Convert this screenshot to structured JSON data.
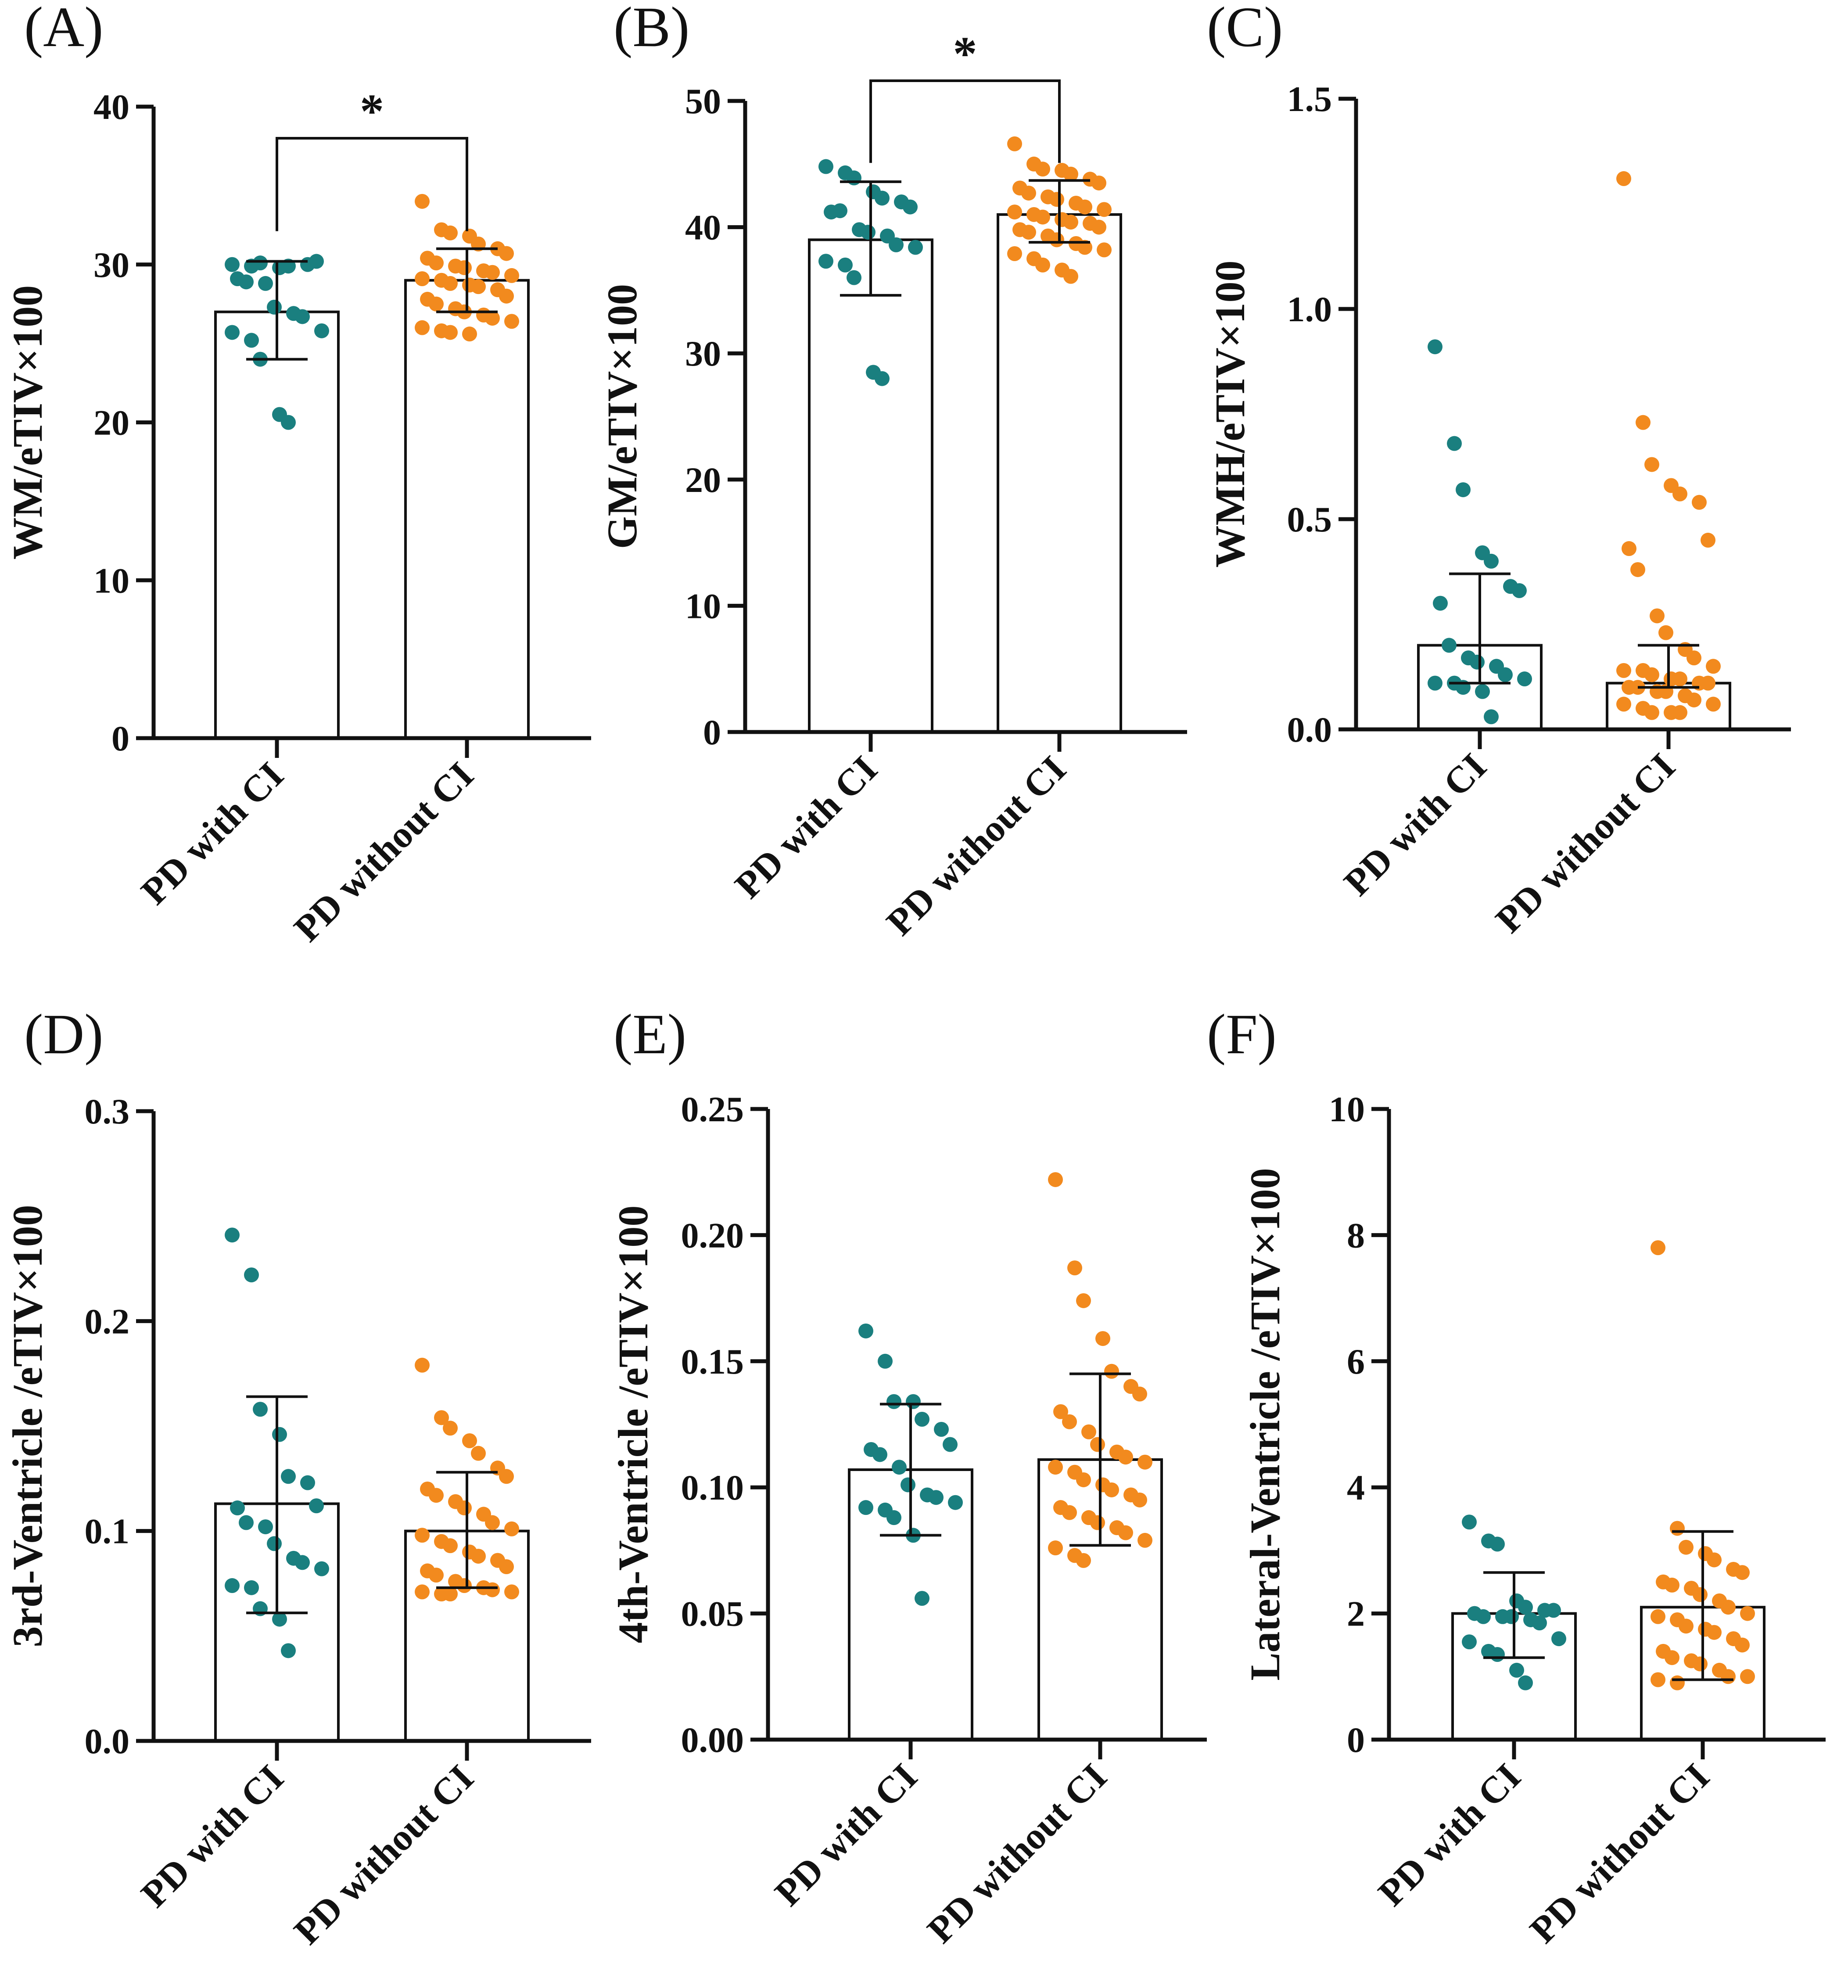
{
  "chart_data": [
    {
      "type": "bar",
      "panel_label": "(A)",
      "ylabel": "WM/eTIV×100",
      "ylim": [
        0,
        40
      ],
      "yticks": [
        0,
        10,
        20,
        30,
        40
      ],
      "ytick_labels": [
        "0",
        "10",
        "20",
        "30",
        "40"
      ],
      "categories": [
        "PD with CI",
        "PD without CI"
      ],
      "series": [
        {
          "name": "PD with CI",
          "color": "#1a7f7f",
          "mean": 27.0,
          "sd_low": 24.0,
          "sd_high": 30.2,
          "points": [
            30.0,
            29.9,
            30.1,
            29.8,
            29.9,
            30.0,
            30.2,
            29.1,
            28.9,
            28.8,
            27.3,
            26.9,
            26.7,
            25.8,
            25.7,
            25.2,
            24.0,
            20.5,
            20.0
          ]
        },
        {
          "name": "PD without CI",
          "color": "#f28a1e",
          "mean": 29.0,
          "sd_low": 27.0,
          "sd_high": 31.0,
          "points": [
            34.0,
            32.2,
            32.0,
            31.8,
            31.3,
            31.0,
            30.7,
            30.4,
            30.1,
            29.9,
            29.8,
            29.6,
            29.5,
            29.3,
            29.1,
            29.0,
            28.8,
            28.7,
            28.6,
            28.4,
            28.0,
            27.8,
            27.5,
            27.2,
            27.0,
            26.8,
            26.6,
            26.4,
            26.0,
            25.8,
            25.7,
            25.6
          ]
        }
      ],
      "significance": {
        "between": [
          0,
          1
        ],
        "label": "*",
        "y": 38.0
      }
    },
    {
      "type": "bar",
      "panel_label": "(B)",
      "ylabel": "GM/eTIV×100",
      "ylim": [
        0,
        50
      ],
      "yticks": [
        0,
        10,
        20,
        30,
        40,
        50
      ],
      "ytick_labels": [
        "0",
        "10",
        "20",
        "30",
        "40",
        "50"
      ],
      "categories": [
        "PD with CI",
        "PD without CI"
      ],
      "series": [
        {
          "name": "PD with CI",
          "color": "#1a7f7f",
          "mean": 39.0,
          "sd_low": 34.6,
          "sd_high": 43.6,
          "points": [
            44.8,
            44.3,
            43.9,
            42.8,
            42.3,
            42.0,
            41.6,
            41.2,
            41.3,
            39.8,
            39.6,
            39.3,
            38.6,
            38.4,
            37.3,
            37.0,
            36.0,
            28.5,
            28.0
          ]
        },
        {
          "name": "PD without CI",
          "color": "#f28a1e",
          "mean": 41.0,
          "sd_low": 38.8,
          "sd_high": 43.7,
          "points": [
            46.6,
            45.0,
            44.6,
            44.5,
            44.2,
            43.8,
            43.5,
            43.1,
            42.7,
            42.4,
            42.2,
            41.9,
            41.6,
            41.4,
            41.2,
            41.0,
            40.8,
            40.6,
            40.4,
            40.3,
            40.0,
            39.8,
            39.6,
            39.3,
            39.0,
            38.7,
            38.4,
            38.2,
            37.9,
            37.5,
            37.0,
            36.6,
            36.1
          ]
        }
      ],
      "significance": {
        "between": [
          0,
          1
        ],
        "label": "*",
        "y": 51.6
      }
    },
    {
      "type": "bar",
      "panel_label": "(C)",
      "ylabel": "WMH/eTIV×100",
      "ylim": [
        0,
        1.5
      ],
      "yticks": [
        0,
        0.5,
        1.0,
        1.5
      ],
      "ytick_labels": [
        "0.0",
        "0.5",
        "1.0",
        "1.5"
      ],
      "categories": [
        "PD with CI",
        "PD without CI"
      ],
      "series": [
        {
          "name": "PD with CI",
          "color": "#1a7f7f",
          "mean": 0.2,
          "sd_low": 0.11,
          "sd_high": 0.37,
          "points": [
            0.91,
            0.68,
            0.57,
            0.42,
            0.4,
            0.34,
            0.33,
            0.3,
            0.2,
            0.17,
            0.16,
            0.15,
            0.13,
            0.12,
            0.11,
            0.11,
            0.1,
            0.09,
            0.03
          ]
        },
        {
          "name": "PD without CI",
          "color": "#f28a1e",
          "mean": 0.11,
          "sd_low": 0.1,
          "sd_high": 0.2,
          "points": [
            1.31,
            0.73,
            0.63,
            0.58,
            0.56,
            0.54,
            0.45,
            0.43,
            0.38,
            0.27,
            0.23,
            0.19,
            0.17,
            0.15,
            0.14,
            0.14,
            0.13,
            0.12,
            0.12,
            0.11,
            0.11,
            0.1,
            0.1,
            0.09,
            0.09,
            0.08,
            0.07,
            0.06,
            0.06,
            0.05,
            0.04,
            0.04,
            0.04
          ]
        }
      ]
    },
    {
      "type": "bar",
      "panel_label": "(D)",
      "ylabel": "3rd-Ventricle /eTIV×100",
      "ylim": [
        0,
        0.3
      ],
      "yticks": [
        0,
        0.1,
        0.2,
        0.3
      ],
      "ytick_labels": [
        "0.0",
        "0.1",
        "0.2",
        "0.3"
      ],
      "categories": [
        "PD with CI",
        "PD without CI"
      ],
      "series": [
        {
          "name": "PD with CI",
          "color": "#1a7f7f",
          "mean": 0.113,
          "sd_low": 0.061,
          "sd_high": 0.164,
          "points": [
            0.241,
            0.222,
            0.158,
            0.146,
            0.126,
            0.123,
            0.112,
            0.111,
            0.104,
            0.102,
            0.094,
            0.087,
            0.085,
            0.082,
            0.074,
            0.073,
            0.063,
            0.058,
            0.043
          ]
        },
        {
          "name": "PD without CI",
          "color": "#f28a1e",
          "mean": 0.1,
          "sd_low": 0.073,
          "sd_high": 0.128,
          "points": [
            0.179,
            0.154,
            0.149,
            0.143,
            0.137,
            0.13,
            0.126,
            0.12,
            0.117,
            0.114,
            0.111,
            0.108,
            0.104,
            0.101,
            0.098,
            0.095,
            0.093,
            0.09,
            0.088,
            0.086,
            0.083,
            0.081,
            0.079,
            0.076,
            0.074,
            0.073,
            0.072,
            0.071,
            0.071,
            0.07,
            0.07
          ]
        }
      ]
    },
    {
      "type": "bar",
      "panel_label": "(E)",
      "ylabel": "4th-Ventricle /eTIV×100",
      "ylim": [
        0,
        0.25
      ],
      "yticks": [
        0,
        0.05,
        0.1,
        0.15,
        0.2,
        0.25
      ],
      "ytick_labels": [
        "0.00",
        "0.05",
        "0.10",
        "0.15",
        "0.20",
        "0.25"
      ],
      "categories": [
        "PD with CI",
        "PD without CI"
      ],
      "series": [
        {
          "name": "PD with CI",
          "color": "#1a7f7f",
          "mean": 0.107,
          "sd_low": 0.081,
          "sd_high": 0.133,
          "points": [
            0.162,
            0.15,
            0.134,
            0.134,
            0.127,
            0.123,
            0.117,
            0.115,
            0.113,
            0.108,
            0.101,
            0.097,
            0.096,
            0.094,
            0.092,
            0.091,
            0.088,
            0.081,
            0.056
          ]
        },
        {
          "name": "PD without CI",
          "color": "#f28a1e",
          "mean": 0.111,
          "sd_low": 0.077,
          "sd_high": 0.145,
          "points": [
            0.222,
            0.187,
            0.174,
            0.159,
            0.146,
            0.14,
            0.137,
            0.13,
            0.126,
            0.122,
            0.117,
            0.114,
            0.112,
            0.11,
            0.108,
            0.106,
            0.103,
            0.101,
            0.099,
            0.097,
            0.095,
            0.092,
            0.09,
            0.088,
            0.086,
            0.084,
            0.082,
            0.079,
            0.076,
            0.073,
            0.071
          ]
        }
      ]
    },
    {
      "type": "bar",
      "panel_label": "(F)",
      "ylabel": "Lateral-Ventricle /eTIV×100",
      "ylim": [
        0,
        10
      ],
      "yticks": [
        0,
        2,
        4,
        6,
        8,
        10
      ],
      "ytick_labels": [
        "0",
        "2",
        "4",
        "6",
        "8",
        "10"
      ],
      "categories": [
        "PD with CI",
        "PD without CI"
      ],
      "series": [
        {
          "name": "PD with CI",
          "color": "#1a7f7f",
          "mean": 2.0,
          "sd_low": 1.3,
          "sd_high": 2.65,
          "points": [
            3.45,
            3.15,
            3.1,
            2.2,
            2.1,
            2.05,
            2.05,
            2.0,
            1.95,
            1.95,
            1.95,
            1.9,
            1.85,
            1.6,
            1.55,
            1.4,
            1.35,
            1.1,
            0.9
          ]
        },
        {
          "name": "PD without CI",
          "color": "#f28a1e",
          "mean": 2.1,
          "sd_low": 0.95,
          "sd_high": 3.3,
          "points": [
            7.8,
            3.35,
            3.05,
            2.95,
            2.85,
            2.7,
            2.65,
            2.5,
            2.45,
            2.4,
            2.3,
            2.2,
            2.1,
            2.0,
            1.95,
            1.9,
            1.8,
            1.75,
            1.7,
            1.6,
            1.5,
            1.4,
            1.3,
            1.25,
            1.2,
            1.1,
            1.0,
            1.0,
            0.95,
            0.9
          ]
        }
      ]
    }
  ]
}
